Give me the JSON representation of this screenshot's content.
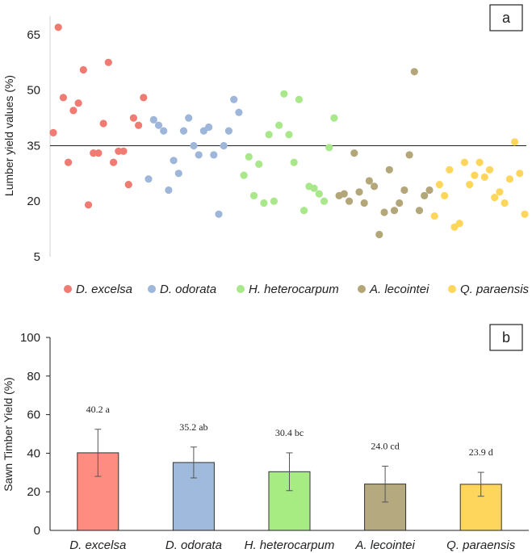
{
  "chart_data": [
    {
      "type": "scatter",
      "panel_label": "a",
      "ylabel": "Lumber yield values (%)",
      "xlabel": "",
      "ylim": [
        5,
        70
      ],
      "yticks": [
        5,
        20,
        35,
        50,
        65
      ],
      "reference_line": 35,
      "legend_position": "bottom",
      "series": [
        {
          "name": "D. excelsa",
          "color": "#f07b72",
          "values": [
            38.5,
            67,
            48,
            30.5,
            44.5,
            46.5,
            55.5,
            19,
            33,
            33,
            41,
            57.5,
            30.5,
            33.5,
            33.5,
            24.5,
            42.5,
            40.5,
            48
          ]
        },
        {
          "name": "D. odorata",
          "color": "#9db6da",
          "values": [
            26,
            42,
            40.5,
            39,
            23,
            31,
            27.5,
            39,
            42.5,
            35,
            32.5,
            39,
            40,
            32.5,
            16.5,
            35,
            39,
            47.5,
            44
          ]
        },
        {
          "name": "H. heterocarpum",
          "color": "#a8e88a",
          "values": [
            27,
            32,
            21.5,
            30,
            19.5,
            38,
            20,
            40.5,
            49,
            38,
            30.5,
            47.5,
            17.5,
            24,
            23.5,
            22,
            20,
            34.5,
            42.5
          ]
        },
        {
          "name": "A. lecointei",
          "color": "#b3a77a",
          "values": [
            21.5,
            22,
            20,
            33,
            22.5,
            19.5,
            25.5,
            24,
            11,
            17,
            28.5,
            17.5,
            19.5,
            23,
            32.5,
            55,
            17.5,
            21.5,
            23
          ]
        },
        {
          "name": "Q. paraensis",
          "color": "#ffd65c",
          "values": [
            16,
            24.5,
            21.5,
            28.5,
            13,
            14,
            30.5,
            24.5,
            27,
            30.5,
            26.5,
            28.5,
            21,
            22.5,
            19.5,
            26,
            36,
            27.5,
            16.5
          ]
        }
      ]
    },
    {
      "type": "bar",
      "panel_label": "b",
      "ylabel": "Sawn Timber Yield (%)",
      "xlabel": "",
      "ylim": [
        0,
        100
      ],
      "yticks": [
        0,
        20,
        40,
        60,
        80,
        100
      ],
      "categories": [
        "D. excelsa",
        "D. odorata",
        "H. heterocarpum",
        "A. lecointei",
        "Q. paraensis"
      ],
      "values": [
        40.2,
        35.2,
        30.4,
        24.0,
        23.9
      ],
      "errors": [
        12.2,
        8.0,
        9.8,
        9.3,
        6.2
      ],
      "data_labels": [
        "40.2 a",
        "35.2 ab",
        "30.4 bc",
        "24.0 cd",
        "23.9 d"
      ],
      "colors": [
        "#ff8c80",
        "#9fbadd",
        "#a7ec82",
        "#b5aa7f",
        "#ffd65c"
      ]
    }
  ]
}
